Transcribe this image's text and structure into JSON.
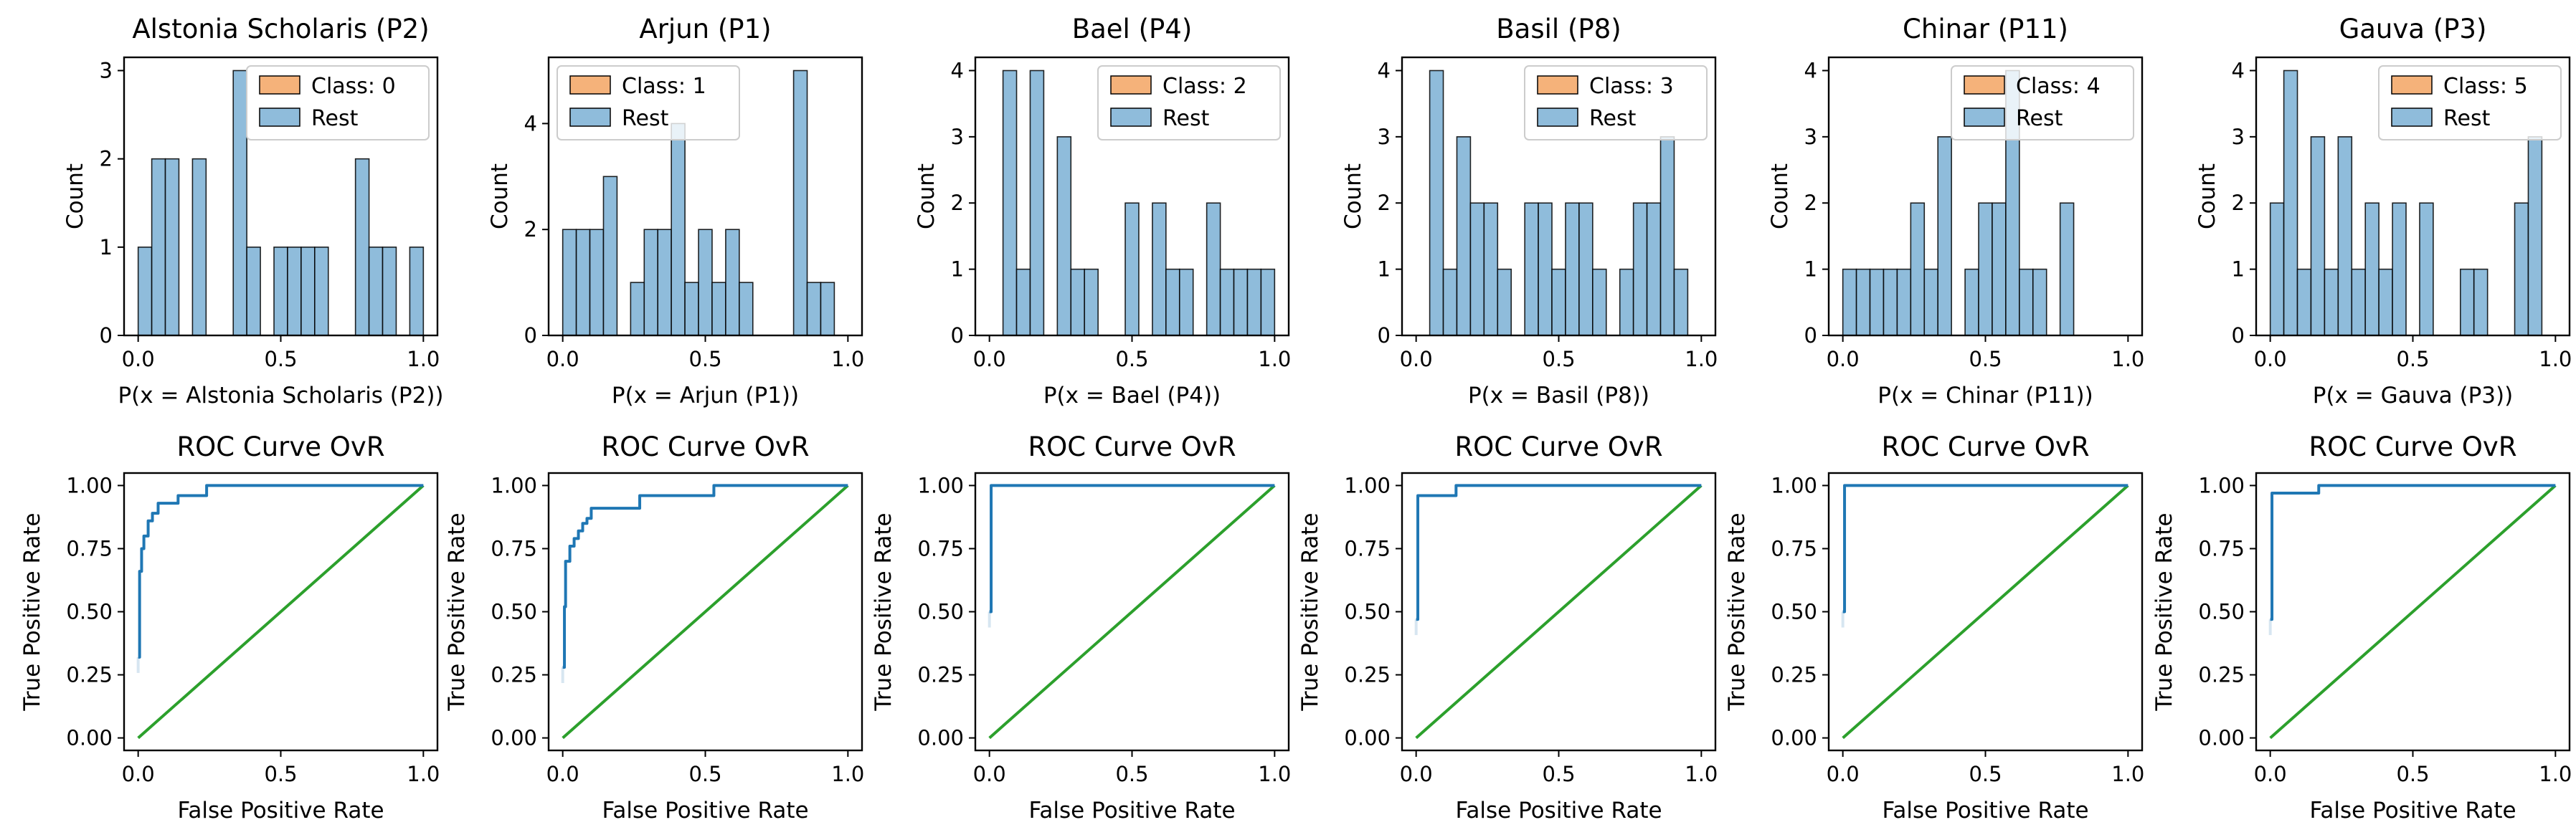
{
  "colors": {
    "class_hist": "#f5b27a",
    "rest_hist": "#8fbcdb",
    "roc": "#1f77b4",
    "chance": "#2ca02c"
  },
  "chart_data": [
    {
      "type": "bar",
      "kind": "histogram",
      "title": "Alstonia Scholaris (P2)",
      "xlabel": "P(x = Alstonia Scholaris (P2))",
      "ylabel": "Count",
      "xlim": [
        0,
        1
      ],
      "ylim": [
        0,
        3
      ],
      "yticks": [
        0,
        1,
        2,
        3
      ],
      "xticks": [
        "0.0",
        "0.5",
        "1.0"
      ],
      "legend": [
        "Class: 0",
        "Rest"
      ],
      "legend_position": "top-right",
      "bin_edges": [
        0.0,
        0.05,
        0.1,
        0.15,
        0.2,
        0.25,
        0.3,
        0.35,
        0.4,
        0.45,
        0.5,
        0.55,
        0.6,
        0.65,
        0.7,
        0.75,
        0.8,
        0.85,
        0.9,
        0.95,
        1.0
      ],
      "series": [
        {
          "name": "Rest",
          "values": [
            1,
            2,
            2,
            0,
            2,
            0,
            0,
            3,
            1,
            0,
            1,
            1,
            1,
            1,
            0,
            0,
            2,
            1,
            1,
            0,
            1
          ]
        }
      ]
    },
    {
      "type": "bar",
      "kind": "histogram",
      "title": "Arjun (P1)",
      "xlabel": "P(x = Arjun (P1))",
      "ylabel": "Count",
      "xlim": [
        0,
        1
      ],
      "ylim": [
        0,
        5
      ],
      "yticks": [
        0,
        2,
        4
      ],
      "xticks": [
        "0.0",
        "0.5",
        "1.0"
      ],
      "legend": [
        "Class: 1",
        "Rest"
      ],
      "legend_position": "top-left",
      "bin_edges": [
        0.0,
        0.05,
        0.1,
        0.15,
        0.2,
        0.25,
        0.3,
        0.35,
        0.4,
        0.45,
        0.5,
        0.55,
        0.6,
        0.65,
        0.7,
        0.75,
        0.8,
        0.85,
        0.9,
        0.95,
        1.0
      ],
      "series": [
        {
          "name": "Rest",
          "values": [
            2,
            2,
            2,
            3,
            0,
            1,
            2,
            2,
            4,
            1,
            2,
            1,
            2,
            1,
            0,
            0,
            0,
            5,
            1,
            1,
            0
          ]
        }
      ]
    },
    {
      "type": "bar",
      "kind": "histogram",
      "title": "Bael (P4)",
      "xlabel": "P(x = Bael (P4))",
      "ylabel": "Count",
      "xlim": [
        0,
        1
      ],
      "ylim": [
        0,
        4
      ],
      "yticks": [
        0,
        1,
        2,
        3,
        4
      ],
      "xticks": [
        "0.0",
        "0.5",
        "1.0"
      ],
      "legend": [
        "Class: 2",
        "Rest"
      ],
      "legend_position": "top-right",
      "bin_edges": [
        0.0,
        0.05,
        0.1,
        0.15,
        0.2,
        0.25,
        0.3,
        0.35,
        0.4,
        0.45,
        0.5,
        0.55,
        0.6,
        0.65,
        0.7,
        0.75,
        0.8,
        0.85,
        0.9,
        0.95,
        1.0
      ],
      "series": [
        {
          "name": "Rest",
          "values": [
            0,
            4,
            1,
            4,
            0,
            3,
            1,
            1,
            0,
            0,
            2,
            0,
            2,
            1,
            1,
            0,
            2,
            1,
            1,
            1,
            1
          ]
        }
      ]
    },
    {
      "type": "bar",
      "kind": "histogram",
      "title": "Basil (P8)",
      "xlabel": "P(x = Basil (P8))",
      "ylabel": "Count",
      "xlim": [
        0,
        1
      ],
      "ylim": [
        0,
        4
      ],
      "yticks": [
        0,
        1,
        2,
        3,
        4
      ],
      "xticks": [
        "0.0",
        "0.5",
        "1.0"
      ],
      "legend": [
        "Class: 3",
        "Rest"
      ],
      "legend_position": "top-right",
      "bin_edges": [
        0.0,
        0.05,
        0.1,
        0.15,
        0.2,
        0.25,
        0.3,
        0.35,
        0.4,
        0.45,
        0.5,
        0.55,
        0.6,
        0.65,
        0.7,
        0.75,
        0.8,
        0.85,
        0.9,
        0.95,
        1.0
      ],
      "series": [
        {
          "name": "Rest",
          "values": [
            0,
            4,
            1,
            3,
            2,
            2,
            1,
            0,
            2,
            2,
            1,
            2,
            2,
            1,
            0,
            1,
            2,
            2,
            3,
            1,
            0
          ]
        }
      ]
    },
    {
      "type": "bar",
      "kind": "histogram",
      "title": "Chinar (P11)",
      "xlabel": "P(x = Chinar (P11))",
      "ylabel": "Count",
      "xlim": [
        0,
        1
      ],
      "ylim": [
        0,
        4
      ],
      "yticks": [
        0,
        1,
        2,
        3,
        4
      ],
      "xticks": [
        "0.0",
        "0.5",
        "1.0"
      ],
      "legend": [
        "Class: 4",
        "Rest"
      ],
      "legend_position": "top-right",
      "bin_edges": [
        0.0,
        0.05,
        0.1,
        0.15,
        0.2,
        0.25,
        0.3,
        0.35,
        0.4,
        0.45,
        0.5,
        0.55,
        0.6,
        0.65,
        0.7,
        0.75,
        0.8,
        0.85,
        0.9,
        0.95,
        1.0
      ],
      "series": [
        {
          "name": "Rest",
          "values": [
            1,
            1,
            1,
            1,
            1,
            2,
            1,
            3,
            0,
            1,
            2,
            2,
            4,
            1,
            1,
            0,
            2,
            0,
            0,
            0,
            0
          ]
        }
      ]
    },
    {
      "type": "bar",
      "kind": "histogram",
      "title": "Gauva (P3)",
      "xlabel": "P(x = Gauva (P3))",
      "ylabel": "Count",
      "xlim": [
        0,
        1
      ],
      "ylim": [
        0,
        4
      ],
      "yticks": [
        0,
        1,
        2,
        3,
        4
      ],
      "xticks": [
        "0.0",
        "0.5",
        "1.0"
      ],
      "legend": [
        "Class: 5",
        "Rest"
      ],
      "legend_position": "top-right",
      "bin_edges": [
        0.0,
        0.05,
        0.1,
        0.15,
        0.2,
        0.25,
        0.3,
        0.35,
        0.4,
        0.45,
        0.5,
        0.55,
        0.6,
        0.65,
        0.7,
        0.75,
        0.8,
        0.85,
        0.9,
        0.95,
        1.0
      ],
      "series": [
        {
          "name": "Rest",
          "values": [
            2,
            4,
            1,
            3,
            1,
            3,
            1,
            2,
            1,
            2,
            0,
            2,
            0,
            0,
            1,
            1,
            0,
            0,
            2,
            3,
            0
          ]
        }
      ]
    },
    {
      "type": "line",
      "kind": "roc",
      "title": "ROC Curve OvR",
      "xlabel": "False Positive Rate",
      "ylabel": "True Positive Rate",
      "xlim": [
        0,
        1
      ],
      "ylim": [
        0,
        1
      ],
      "xticks": [
        "0.0",
        "0.5",
        "1.0"
      ],
      "yticks": [
        "0.00",
        "0.25",
        "0.50",
        "0.75",
        "1.00"
      ],
      "roc": [
        [
          0,
          0.32
        ],
        [
          0.005,
          0.32
        ],
        [
          0.005,
          0.66
        ],
        [
          0.012,
          0.66
        ],
        [
          0.012,
          0.75
        ],
        [
          0.02,
          0.75
        ],
        [
          0.02,
          0.8
        ],
        [
          0.035,
          0.8
        ],
        [
          0.035,
          0.86
        ],
        [
          0.05,
          0.86
        ],
        [
          0.05,
          0.89
        ],
        [
          0.07,
          0.89
        ],
        [
          0.07,
          0.93
        ],
        [
          0.14,
          0.93
        ],
        [
          0.14,
          0.96
        ],
        [
          0.24,
          0.96
        ],
        [
          0.24,
          1.0
        ],
        [
          1.0,
          1.0
        ]
      ],
      "chance": [
        [
          0,
          0
        ],
        [
          1,
          1
        ]
      ]
    },
    {
      "type": "line",
      "kind": "roc",
      "title": "ROC Curve OvR",
      "xlabel": "False Positive Rate",
      "ylabel": "True Positive Rate",
      "xlim": [
        0,
        1
      ],
      "ylim": [
        0,
        1
      ],
      "xticks": [
        "0.0",
        "0.5",
        "1.0"
      ],
      "yticks": [
        "0.00",
        "0.25",
        "0.50",
        "0.75",
        "1.00"
      ],
      "roc": [
        [
          0,
          0.28
        ],
        [
          0.006,
          0.28
        ],
        [
          0.006,
          0.52
        ],
        [
          0.01,
          0.52
        ],
        [
          0.01,
          0.7
        ],
        [
          0.025,
          0.7
        ],
        [
          0.025,
          0.76
        ],
        [
          0.04,
          0.76
        ],
        [
          0.04,
          0.79
        ],
        [
          0.055,
          0.79
        ],
        [
          0.055,
          0.82
        ],
        [
          0.07,
          0.82
        ],
        [
          0.07,
          0.85
        ],
        [
          0.085,
          0.85
        ],
        [
          0.085,
          0.87
        ],
        [
          0.1,
          0.87
        ],
        [
          0.1,
          0.91
        ],
        [
          0.27,
          0.91
        ],
        [
          0.27,
          0.96
        ],
        [
          0.53,
          0.96
        ],
        [
          0.53,
          1.0
        ],
        [
          1.0,
          1.0
        ]
      ],
      "chance": [
        [
          0,
          0
        ],
        [
          1,
          1
        ]
      ]
    },
    {
      "type": "line",
      "kind": "roc",
      "title": "ROC Curve OvR",
      "xlabel": "False Positive Rate",
      "ylabel": "True Positive Rate",
      "xlim": [
        0,
        1
      ],
      "ylim": [
        0,
        1
      ],
      "xticks": [
        "0.0",
        "0.5",
        "1.0"
      ],
      "yticks": [
        "0.00",
        "0.25",
        "0.50",
        "0.75",
        "1.00"
      ],
      "roc": [
        [
          0,
          0.5
        ],
        [
          0.006,
          0.5
        ],
        [
          0.006,
          1.0
        ],
        [
          1.0,
          1.0
        ]
      ],
      "chance": [
        [
          0,
          0
        ],
        [
          1,
          1
        ]
      ]
    },
    {
      "type": "line",
      "kind": "roc",
      "title": "ROC Curve OvR",
      "xlabel": "False Positive Rate",
      "ylabel": "True Positive Rate",
      "xlim": [
        0,
        1
      ],
      "ylim": [
        0,
        1
      ],
      "xticks": [
        "0.0",
        "0.5",
        "1.0"
      ],
      "yticks": [
        "0.00",
        "0.25",
        "0.50",
        "0.75",
        "1.00"
      ],
      "roc": [
        [
          0,
          0.47
        ],
        [
          0.006,
          0.47
        ],
        [
          0.006,
          0.96
        ],
        [
          0.14,
          0.96
        ],
        [
          0.14,
          1.0
        ],
        [
          1.0,
          1.0
        ]
      ],
      "chance": [
        [
          0,
          0
        ],
        [
          1,
          1
        ]
      ]
    },
    {
      "type": "line",
      "kind": "roc",
      "title": "ROC Curve OvR",
      "xlabel": "False Positive Rate",
      "ylabel": "True Positive Rate",
      "xlim": [
        0,
        1
      ],
      "ylim": [
        0,
        1
      ],
      "xticks": [
        "0.0",
        "0.5",
        "1.0"
      ],
      "yticks": [
        "0.00",
        "0.25",
        "0.50",
        "0.75",
        "1.00"
      ],
      "roc": [
        [
          0,
          0.5
        ],
        [
          0.006,
          0.5
        ],
        [
          0.006,
          1.0
        ],
        [
          1.0,
          1.0
        ]
      ],
      "chance": [
        [
          0,
          0
        ],
        [
          1,
          1
        ]
      ]
    },
    {
      "type": "line",
      "kind": "roc",
      "title": "ROC Curve OvR",
      "xlabel": "False Positive Rate",
      "ylabel": "True Positive Rate",
      "xlim": [
        0,
        1
      ],
      "ylim": [
        0,
        1
      ],
      "xticks": [
        "0.0",
        "0.5",
        "1.0"
      ],
      "yticks": [
        "0.00",
        "0.25",
        "0.50",
        "0.75",
        "1.00"
      ],
      "roc": [
        [
          0,
          0.47
        ],
        [
          0.006,
          0.47
        ],
        [
          0.006,
          0.97
        ],
        [
          0.17,
          0.97
        ],
        [
          0.17,
          1.0
        ],
        [
          1.0,
          1.0
        ]
      ],
      "chance": [
        [
          0,
          0
        ],
        [
          1,
          1
        ]
      ]
    }
  ]
}
